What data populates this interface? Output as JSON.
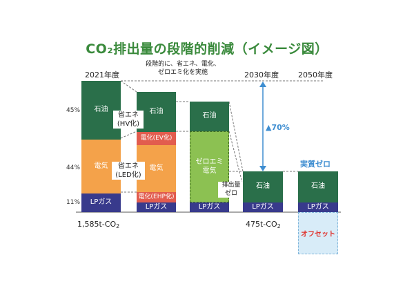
{
  "title": "CO₂排出量の段階的削減（イメージ図）",
  "headers": {
    "y2021": "2021年度",
    "stepwise_line1": "段階的に、省エネ、電化、",
    "stepwise_line2": "ゼロエミ化を実施",
    "y2030": "2030年度",
    "y2050": "2050年度"
  },
  "shares": {
    "oil": "45%",
    "elec": "44%",
    "lpg": "11%"
  },
  "segments": {
    "oil": "石油",
    "elec": "電気",
    "lpg": "LPガス",
    "zero_line1": "ゼロエミ",
    "zero_line2": "電気",
    "ev": "電化(EV化)",
    "ehp": "電化(EHP化)"
  },
  "notes": {
    "hv_line1": "省エネ",
    "hv_line2": "(HV化)",
    "led_line1": "省エネ",
    "led_line2": "(LED化)",
    "zero_line1": "排出量",
    "zero_line2": "ゼロ"
  },
  "reduction": "▲70%",
  "net_zero": "実質ゼロ",
  "offset": "オフセット",
  "emissions": {
    "y2021": {
      "value": "1,585t-CO",
      "sub": "2"
    },
    "y2030": {
      "value": "475t-CO",
      "sub": "2"
    }
  },
  "colors": {
    "oil": "#2a6f4a",
    "elec": "#f4a24a",
    "lpg": "#383a8c",
    "zero": "#8cc152",
    "electrification": "#e25c4e",
    "title": "#3a8a3c",
    "accent": "#3f8ed1",
    "offset_text": "#e0302a"
  }
}
